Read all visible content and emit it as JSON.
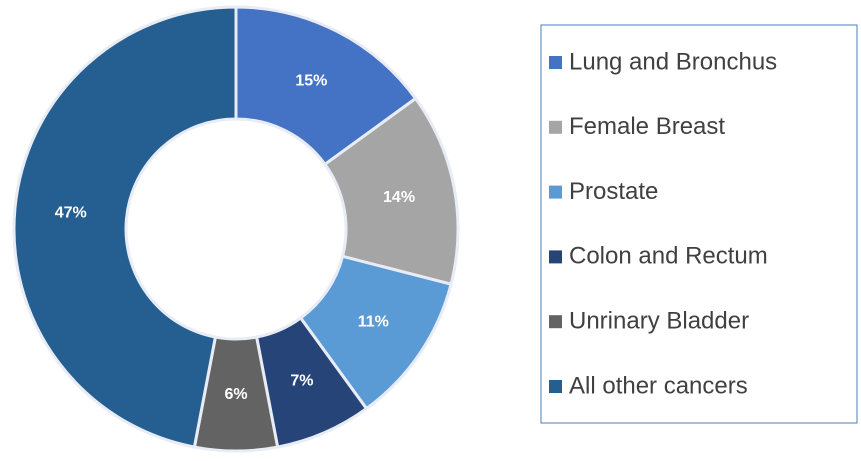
{
  "chart_data": {
    "type": "donut",
    "categories": [
      "Lung and Bronchus",
      "Female Breast",
      "Prostate",
      "Colon and Rectum",
      "Unrinary Bladder",
      "All other cancers"
    ],
    "values": [
      15,
      14,
      11,
      7,
      6,
      47
    ],
    "value_labels": [
      "15%",
      "14%",
      "11%",
      "7%",
      "6%",
      "47%"
    ],
    "colors": [
      "#4472c4",
      "#a5a5a5",
      "#5b9bd5",
      "#264478",
      "#636363",
      "#255e91"
    ],
    "legend": "right"
  }
}
